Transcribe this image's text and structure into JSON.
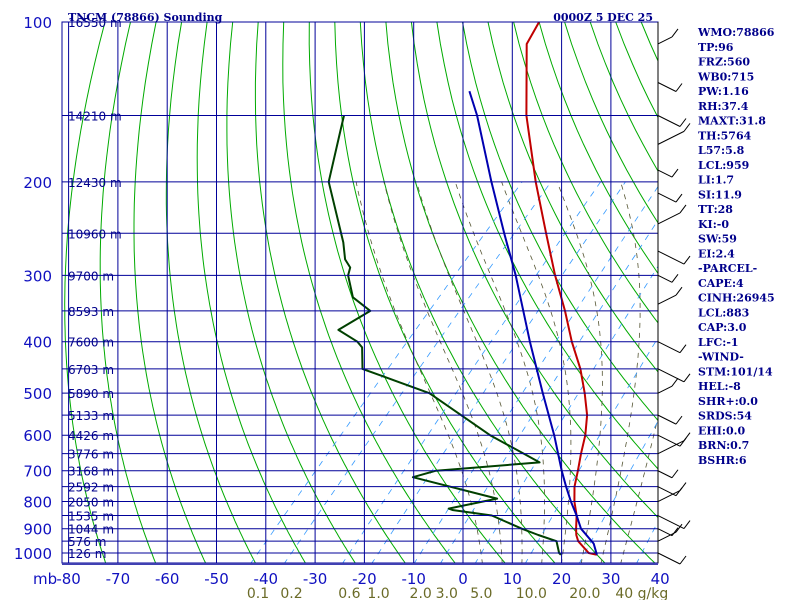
{
  "title": "TNCM (78866) Sounding",
  "datetime": "0000Z  5 DEC 25",
  "chart_data": {
    "type": "line",
    "diagram": "skew-T log-P",
    "yscale": "log",
    "ylim": [
      1050,
      100
    ],
    "xlim": [
      -80,
      40
    ],
    "xlabel": "",
    "ylabel": "mb",
    "pressure_levels": [
      100,
      200,
      300,
      400,
      500,
      600,
      700,
      800,
      900,
      1000
    ],
    "pressure_labels": [
      "100",
      "200",
      "300",
      "400",
      "500",
      "600",
      "700",
      "800",
      "900",
      "1000"
    ],
    "temperature_ticks": [
      -80,
      -70,
      -60,
      -50,
      -40,
      -30,
      -20,
      -10,
      0,
      10,
      20,
      30,
      40
    ],
    "temperature_labels": [
      "-80",
      "-70",
      "-60",
      "-50",
      "-40",
      "-30",
      "-20",
      "-10",
      "0",
      "10",
      "20",
      "30",
      "40"
    ],
    "y_unit_label": "mb",
    "height_labels": [
      {
        "p": 100,
        "text": "16550 m"
      },
      {
        "p": 150,
        "text": "14210 m"
      },
      {
        "p": 200,
        "text": "12430 m"
      },
      {
        "p": 250,
        "text": "10960 m"
      },
      {
        "p": 300,
        "text": "9700 m"
      },
      {
        "p": 350,
        "text": "8593 m"
      },
      {
        "p": 400,
        "text": "7600 m"
      },
      {
        "p": 450,
        "text": "6703 m"
      },
      {
        "p": 500,
        "text": "5890 m"
      },
      {
        "p": 550,
        "text": "5133 m"
      },
      {
        "p": 600,
        "text": "4426 m"
      },
      {
        "p": 650,
        "text": "3776 m"
      },
      {
        "p": 700,
        "text": "3168 m"
      },
      {
        "p": 750,
        "text": "2592 m"
      },
      {
        "p": 800,
        "text": "2050 m"
      },
      {
        "p": 850,
        "text": "1535 m"
      },
      {
        "p": 900,
        "text": "1044 m"
      },
      {
        "p": 950,
        "text": "576 m"
      },
      {
        "p": 1000,
        "text": "126 m"
      }
    ],
    "mixing_ratio_labels": [
      "0.1",
      "0.2",
      "0.6",
      "1.0",
      "2.0",
      "3.0",
      "5.0",
      "10.0",
      "20.0",
      "40 g/kg"
    ],
    "mixing_ratio_values": [
      0.1,
      0.2,
      0.6,
      1.0,
      2.0,
      3.0,
      5.0,
      10.0,
      20.0,
      40.0
    ],
    "series": [
      {
        "name": "temperature",
        "color": "#c00000",
        "points": [
          [
            1008,
            27.5
          ],
          [
            1000,
            25.5
          ],
          [
            950,
            21.2
          ],
          [
            925,
            19.7
          ],
          [
            900,
            18.5
          ],
          [
            850,
            16.2
          ],
          [
            800,
            13.2
          ],
          [
            750,
            10.5
          ],
          [
            700,
            8.3
          ],
          [
            650,
            5.8
          ],
          [
            600,
            3.3
          ],
          [
            550,
            0.0
          ],
          [
            500,
            -4.5
          ],
          [
            450,
            -9.8
          ],
          [
            400,
            -16.5
          ],
          [
            350,
            -23.5
          ],
          [
            300,
            -32.0
          ],
          [
            250,
            -41.5
          ],
          [
            200,
            -53.0
          ],
          [
            150,
            -67.0
          ],
          [
            110,
            -80.0
          ],
          [
            100,
            -81.5
          ]
        ]
      },
      {
        "name": "parcel",
        "color": "#0000b0",
        "points": [
          [
            1008,
            27.5
          ],
          [
            960,
            24.8
          ],
          [
            900,
            19.5
          ],
          [
            850,
            16.2
          ],
          [
            800,
            12.5
          ],
          [
            750,
            8.8
          ],
          [
            700,
            5.0
          ],
          [
            600,
            -3.0
          ],
          [
            500,
            -13.0
          ],
          [
            400,
            -25.0
          ],
          [
            300,
            -40.0
          ],
          [
            250,
            -50.0
          ],
          [
            200,
            -62.0
          ],
          [
            150,
            -77.0
          ],
          [
            135,
            -83.0
          ]
        ]
      },
      {
        "name": "dewpoint",
        "color": "#004000",
        "points": [
          [
            1008,
            20.2
          ],
          [
            1000,
            19.5
          ],
          [
            950,
            16.8
          ],
          [
            925,
            12.0
          ],
          [
            900,
            7.5
          ],
          [
            850,
            -1.0
          ],
          [
            830,
            -10.0
          ],
          [
            825,
            -11.0
          ],
          [
            790,
            -3.0
          ],
          [
            720,
            -24.0
          ],
          [
            700,
            -20.5
          ],
          [
            675,
            -1.0
          ],
          [
            600,
            -16.0
          ],
          [
            500,
            -36.0
          ],
          [
            450,
            -54.0
          ],
          [
            410,
            -58.0
          ],
          [
            400,
            -60.0
          ],
          [
            380,
            -66.0
          ],
          [
            350,
            -63.0
          ],
          [
            330,
            -69.0
          ],
          [
            300,
            -74.0
          ],
          [
            290,
            -75.0
          ],
          [
            280,
            -77.5
          ],
          [
            260,
            -81.0
          ],
          [
            200,
            -95.0
          ],
          [
            160,
            -102.0
          ],
          [
            150,
            -104.0
          ]
        ]
      }
    ]
  },
  "indices": [
    "WMO:78866",
    "TP:96",
    "FRZ:560",
    "WB0:715",
    "PW:1.16",
    "RH:37.4",
    "MAXT:31.8",
    "TH:5764",
    "L57:5.8",
    "LCL:959",
    "LI:1.7",
    "SI:11.9",
    "TT:28",
    "KI:-0",
    "SW:59",
    "EI:2.4",
    "-PARCEL-",
    "CAPE:4",
    "CINH:26945",
    "LCL:883",
    "CAP:3.0",
    "LFC:-1",
    "-WIND-",
    "STM:101/14",
    "HEL:-8",
    "SHR+:0.0",
    "SRDS:54",
    "EHI:0.0",
    "BRN:0.7",
    "BSHR:6"
  ],
  "colors": {
    "grid": "#000099",
    "dry_adiabat": "#00aa00",
    "moist_adiabat": "#555533",
    "mixing_ratio": "#3399ff",
    "temperature": "#c00000",
    "parcel": "#0000b0",
    "dewpoint": "#004000",
    "text": "#00008b"
  }
}
